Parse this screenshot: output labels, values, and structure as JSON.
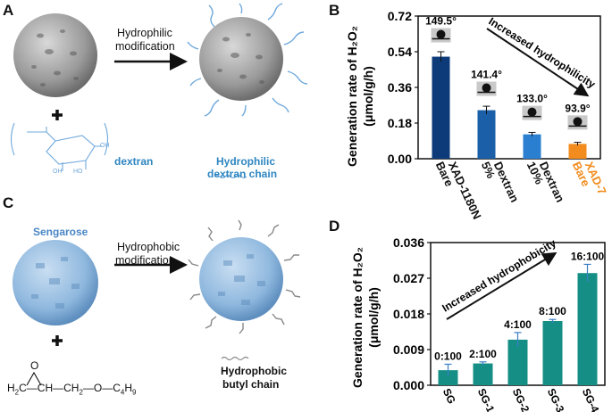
{
  "panels": {
    "A": {
      "letter": "A",
      "arrow_line1": "Hydrophilic",
      "arrow_line2": "modification",
      "plus": "+",
      "reagent_label": "dextran",
      "chain_line1": "Hydrophilic",
      "chain_line2": "dextran chain",
      "sugar_oh_labels": [
        "OH",
        "HO",
        "OH"
      ],
      "colors": {
        "dextran": "#2e86c1",
        "sphere": "#9a9a9a"
      }
    },
    "C": {
      "letter": "C",
      "sphere_label": "Sengarose",
      "arrow_line1": "Hydrophobic",
      "arrow_line2": "modification",
      "plus": "+",
      "chain_line1": "Hydrophobic",
      "chain_line2": "butyl chain",
      "formula_left": "H",
      "formula_left_sub": "2",
      "formula_mid": "C—CH—CH",
      "formula_mid_sub": "2",
      "formula_right": "—O—C",
      "formula_right_sub1": "4",
      "formula_right_h": "H",
      "formula_right_sub2": "9",
      "epoxide_o": "O",
      "colors": {
        "sphere": "#8fb8de",
        "label": "#4a86c5"
      }
    }
  },
  "chart_data": [
    {
      "panel": "B",
      "type": "bar",
      "ylabel_line1": "Generation rate of H₂O₂",
      "ylabel_line2": "(μmol/g/h)",
      "categories": [
        [
          "Bare",
          "XAD-1180N"
        ],
        [
          "5%",
          "Dextran"
        ],
        [
          "10%",
          "Dextran"
        ],
        [
          "Bare",
          "XAD-7"
        ]
      ],
      "values": [
        0.515,
        0.245,
        0.123,
        0.075
      ],
      "errors": [
        0.025,
        0.02,
        0.01,
        0.008
      ],
      "bar_colors": [
        "#0d3b7a",
        "#1a5fa8",
        "#2b7fd0",
        "#f28c1e"
      ],
      "category_colors": [
        "#111111",
        "#111111",
        "#111111",
        "#f28c1e"
      ],
      "contact_angles": [
        "149.5°",
        "141.4°",
        "133.0°",
        "93.9°"
      ],
      "yticks": [
        "0.00",
        "0.18",
        "0.36",
        "0.54",
        "0.72"
      ],
      "ylim": [
        0,
        0.72
      ],
      "annotation": "Increased hydrophilicity"
    },
    {
      "panel": "D",
      "type": "bar",
      "ylabel_line1": "Generation rate of H₂O₂",
      "ylabel_line2": "(μmol/g/h)",
      "categories": [
        "SG",
        "SG-1",
        "SG-2",
        "SG-3",
        "SG-4"
      ],
      "values": [
        0.0038,
        0.0055,
        0.0115,
        0.0162,
        0.0283
      ],
      "errors": [
        0.0015,
        0.0004,
        0.0018,
        0.0004,
        0.0022
      ],
      "ratios": [
        "0:100",
        "2:100",
        "4:100",
        "8:100",
        "16:100"
      ],
      "bar_color": "#158f86",
      "yticks": [
        "0.000",
        "0.009",
        "0.018",
        "0.027",
        "0.036"
      ],
      "ylim": [
        0,
        0.036
      ],
      "annotation": "Increased hydrophobicity"
    }
  ]
}
